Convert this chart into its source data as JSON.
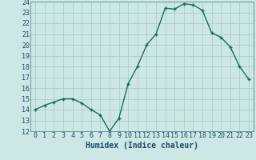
{
  "x": [
    0,
    1,
    2,
    3,
    4,
    5,
    6,
    7,
    8,
    9,
    10,
    11,
    12,
    13,
    14,
    15,
    16,
    17,
    18,
    19,
    20,
    21,
    22,
    23
  ],
  "y": [
    14.0,
    14.4,
    14.7,
    15.0,
    15.0,
    14.6,
    14.0,
    13.5,
    12.0,
    13.2,
    16.4,
    18.0,
    20.0,
    21.0,
    23.4,
    23.3,
    23.8,
    23.7,
    23.2,
    21.1,
    20.7,
    19.8,
    18.0,
    16.8
  ],
  "line_color": "#1a6b5a",
  "marker": "+",
  "marker_size": 3,
  "marker_lw": 1.0,
  "line_width": 1.0,
  "bg_color": "#cce8e4",
  "grid_color": "#b0ccca",
  "xlabel": "Humidex (Indice chaleur)",
  "xlim": [
    -0.5,
    23.5
  ],
  "ylim": [
    12,
    24
  ],
  "yticks": [
    12,
    13,
    14,
    15,
    16,
    17,
    18,
    19,
    20,
    21,
    22,
    23,
    24
  ],
  "xticks": [
    0,
    1,
    2,
    3,
    4,
    5,
    6,
    7,
    8,
    9,
    10,
    11,
    12,
    13,
    14,
    15,
    16,
    17,
    18,
    19,
    20,
    21,
    22,
    23
  ],
  "tick_label_size": 6.0,
  "xlabel_size": 7.0,
  "axis_color": "#1a4a6b",
  "spine_color": "#5a8a8a"
}
